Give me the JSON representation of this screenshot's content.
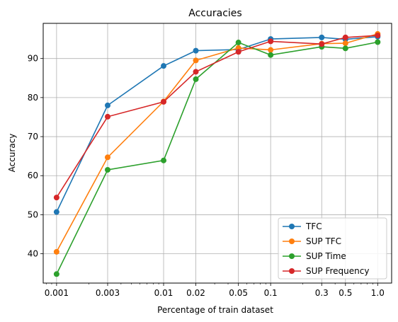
{
  "chart_data": {
    "type": "line",
    "title": "Accuracies",
    "xlabel": "Percentage of train dataset",
    "ylabel": "Accuracy",
    "x_scale": "log",
    "x": [
      0.001,
      0.003,
      0.01,
      0.02,
      0.05,
      0.1,
      0.3,
      0.5,
      1.0
    ],
    "x_tick_labels": [
      "0.001",
      "0.003",
      "0.01",
      "0.02",
      "0.05",
      "0.1",
      "0.3",
      "0.5",
      "1.0"
    ],
    "xlim": [
      0.00075,
      1.35
    ],
    "ylim": [
      32.5,
      99
    ],
    "y_ticks": [
      40,
      50,
      60,
      70,
      80,
      90
    ],
    "grid": true,
    "legend_position": "lower-right",
    "series": [
      {
        "name": "TFC",
        "color": "#1f77b4",
        "values": [
          50.7,
          78.0,
          88.1,
          92.0,
          92.3,
          95.0,
          95.4,
          94.9,
          95.6
        ]
      },
      {
        "name": "SUP TFC",
        "color": "#ff7f0e",
        "values": [
          40.5,
          64.7,
          79.0,
          89.5,
          92.7,
          92.2,
          93.8,
          93.9,
          96.3
        ]
      },
      {
        "name": "SUP Time",
        "color": "#2ca02c",
        "values": [
          34.8,
          61.5,
          63.9,
          84.7,
          94.1,
          90.9,
          93.0,
          92.6,
          94.2
        ]
      },
      {
        "name": "SUP Frequency",
        "color": "#d62728",
        "values": [
          54.4,
          75.1,
          78.9,
          86.6,
          91.7,
          94.4,
          93.7,
          95.4,
          95.9
        ]
      }
    ]
  }
}
